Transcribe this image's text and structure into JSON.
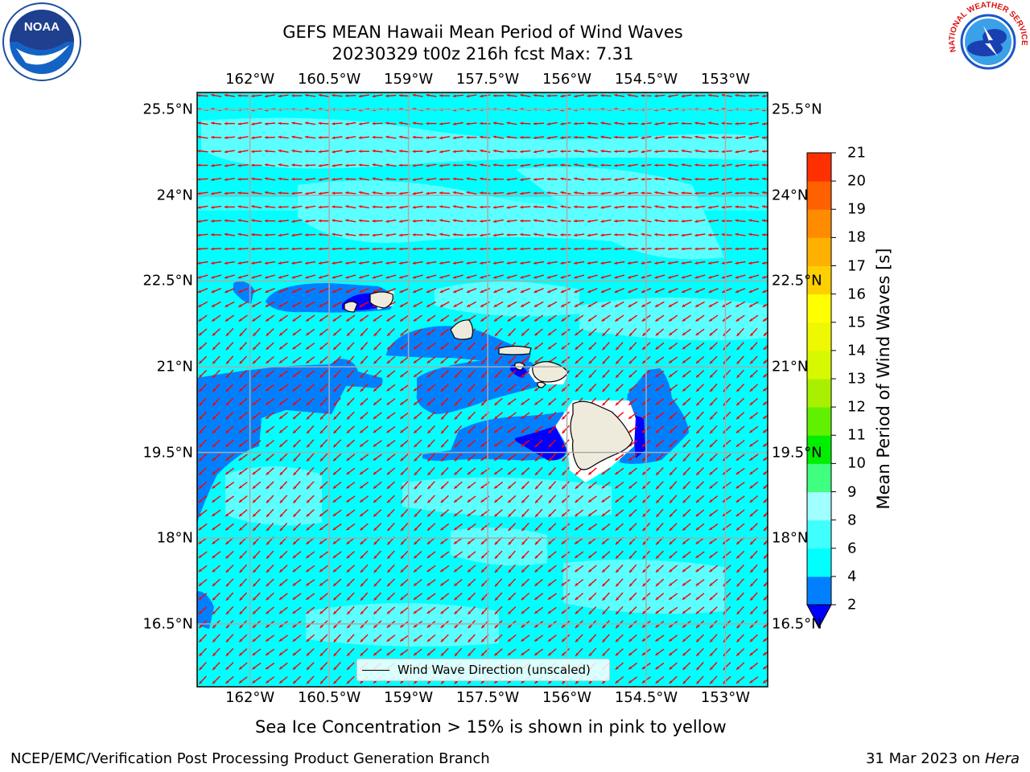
{
  "title": {
    "line1": "GEFS MEAN Hawaii Mean Period of Wind Waves",
    "line2": "20230329 t00z 216h fcst   Max: 7.31"
  },
  "logos": {
    "left_text": "NOAA",
    "right_text": "NATIONAL WEATHER SERVICE"
  },
  "map": {
    "lon_ticks": [
      "162°W",
      "160.5°W",
      "159°W",
      "157.5°W",
      "156°W",
      "154.5°W",
      "153°W"
    ],
    "lat_ticks": [
      "25.5°N",
      "24°N",
      "22.5°N",
      "21°N",
      "19.5°N",
      "18°N",
      "16.5°N"
    ],
    "lon_range": [
      -163,
      -152.2
    ],
    "lat_range": [
      15.4,
      25.8
    ],
    "ocean_color": "#00ffff",
    "arrow_color": "#ff0000",
    "land_color": "#efebdc"
  },
  "colorbar": {
    "label": "Mean Period of Wind Waves [s]",
    "levels": [
      2,
      4,
      6,
      8,
      9,
      10,
      11,
      12,
      13,
      14,
      15,
      16,
      17,
      18,
      19,
      20,
      21
    ],
    "tick_labels": [
      "2",
      "4",
      "6",
      "8",
      "9",
      "10",
      "11",
      "12",
      "13",
      "14",
      "15",
      "16",
      "17",
      "18",
      "19",
      "20",
      "21"
    ],
    "colors": [
      "#0080ff",
      "#00ffff",
      "#40ffff",
      "#a0ffff",
      "#40ff80",
      "#00ee00",
      "#60f000",
      "#a8f000",
      "#d8f800",
      "#eef800",
      "#ffff00",
      "#ffd000",
      "#ffb000",
      "#ff8c00",
      "#ff6000",
      "#ff3000",
      "#ff0000"
    ],
    "under_color": "#0000ff"
  },
  "legend": {
    "label": "Wind Wave Direction (unscaled)"
  },
  "notes": {
    "sea_ice": "Sea Ice Concentration > 15% is shown in pink to yellow"
  },
  "footer": {
    "left": "NCEP/EMC/Verification Post Processing Product Generation Branch",
    "date": "31 Mar 2023 on ",
    "host": "Hera"
  }
}
